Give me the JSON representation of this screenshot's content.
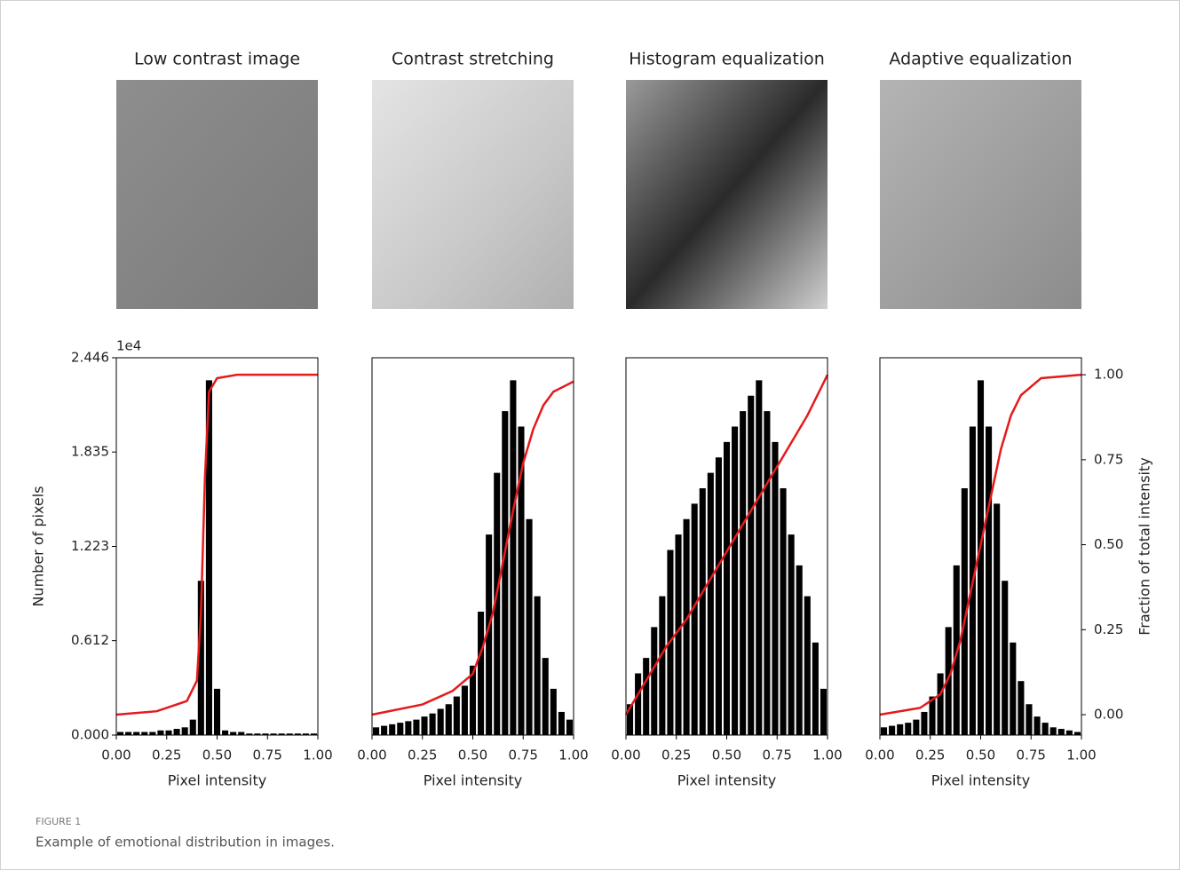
{
  "chart_data": [
    {
      "type": "histogram",
      "title": "Low contrast image",
      "xlabel": "Pixel intensity",
      "ylabel": "Number of pixels",
      "y_offset_label": "1e4",
      "bins": [
        0,
        0.04,
        0.08,
        0.12,
        0.16,
        0.2,
        0.24,
        0.28,
        0.32,
        0.36,
        0.4,
        0.44,
        0.48,
        0.52,
        0.56,
        0.6,
        0.64,
        0.68,
        0.72,
        0.76,
        0.8,
        0.84,
        0.88,
        0.92,
        0.96,
        1.0
      ],
      "values": [
        0.02,
        0.02,
        0.02,
        0.02,
        0.02,
        0.03,
        0.03,
        0.04,
        0.05,
        0.1,
        1.0,
        2.3,
        0.3,
        0.03,
        0.02,
        0.02,
        0.01,
        0.01,
        0.01,
        0.01,
        0.01,
        0.01,
        0.01,
        0.01,
        0.01
      ],
      "color": "#000000",
      "cdf": {
        "x": [
          0,
          0.2,
          0.35,
          0.4,
          0.42,
          0.44,
          0.46,
          0.5,
          0.6,
          1.0
        ],
        "values": [
          0,
          0.01,
          0.04,
          0.1,
          0.3,
          0.7,
          0.95,
          0.99,
          1.0,
          1.0
        ],
        "color": "#e41a1c"
      },
      "xlim": [
        0,
        1
      ],
      "xticks": [
        {
          "value": 0,
          "label": "0.00"
        },
        0.25,
        {
          "value": 0.5,
          "label": "0.50"
        },
        0.75,
        {
          "value": 1,
          "label": "1.00"
        }
      ],
      "ylim": [
        0,
        2.446
      ],
      "yticks": [
        {
          "value": 0,
          "label": "0.000"
        },
        0.612,
        1.223,
        1.835,
        2.446
      ],
      "y2lim": [
        -0.06,
        1.05
      ]
    },
    {
      "type": "histogram",
      "title": "Contrast stretching",
      "xlabel": "Pixel intensity",
      "bins": [
        0,
        0.04,
        0.08,
        0.12,
        0.16,
        0.2,
        0.24,
        0.28,
        0.32,
        0.36,
        0.4,
        0.44,
        0.48,
        0.52,
        0.56,
        0.6,
        0.64,
        0.68,
        0.72,
        0.76,
        0.8,
        0.84,
        0.88,
        0.92,
        0.96,
        1.0
      ],
      "values": [
        0.05,
        0.06,
        0.07,
        0.08,
        0.09,
        0.1,
        0.12,
        0.14,
        0.17,
        0.2,
        0.25,
        0.32,
        0.45,
        0.8,
        1.3,
        1.7,
        2.1,
        2.3,
        2.0,
        1.4,
        0.9,
        0.5,
        0.3,
        0.15,
        0.1
      ],
      "color": "#000000",
      "cdf": {
        "x": [
          0,
          0.25,
          0.4,
          0.5,
          0.55,
          0.6,
          0.65,
          0.7,
          0.75,
          0.8,
          0.85,
          0.9,
          1.0
        ],
        "values": [
          0,
          0.03,
          0.07,
          0.12,
          0.2,
          0.3,
          0.45,
          0.6,
          0.74,
          0.84,
          0.91,
          0.95,
          0.98
        ],
        "color": "#e41a1c"
      },
      "xlim": [
        0,
        1
      ],
      "xticks": [
        {
          "value": 0,
          "label": "0.00"
        },
        0.25,
        {
          "value": 0.5,
          "label": "0.50"
        },
        0.75,
        {
          "value": 1,
          "label": "1.00"
        }
      ],
      "ylim": [
        0,
        2.446
      ],
      "y2lim": [
        -0.06,
        1.05
      ]
    },
    {
      "type": "histogram",
      "title": "Histogram equalization",
      "xlabel": "Pixel intensity",
      "bins": [
        0,
        0.04,
        0.08,
        0.12,
        0.16,
        0.2,
        0.24,
        0.28,
        0.32,
        0.36,
        0.4,
        0.44,
        0.48,
        0.52,
        0.56,
        0.6,
        0.64,
        0.68,
        0.72,
        0.76,
        0.8,
        0.84,
        0.88,
        0.92,
        0.96,
        1.0
      ],
      "values": [
        0.2,
        0.4,
        0.5,
        0.7,
        0.9,
        1.2,
        1.3,
        1.4,
        1.5,
        1.6,
        1.7,
        1.8,
        1.9,
        2.0,
        2.1,
        2.2,
        2.3,
        2.1,
        1.9,
        1.6,
        1.3,
        1.1,
        0.9,
        0.6,
        0.3
      ],
      "color": "#000000",
      "cdf": {
        "x": [
          0,
          0.1,
          0.2,
          0.3,
          0.4,
          0.5,
          0.6,
          0.7,
          0.8,
          0.9,
          1.0
        ],
        "values": [
          0,
          0.1,
          0.2,
          0.28,
          0.38,
          0.48,
          0.58,
          0.68,
          0.78,
          0.88,
          1.0
        ],
        "color": "#e41a1c"
      },
      "xlim": [
        0,
        1
      ],
      "xticks": [
        {
          "value": 0,
          "label": "0.00"
        },
        0.25,
        {
          "value": 0.5,
          "label": "0.50"
        },
        0.75,
        {
          "value": 1,
          "label": "1.00"
        }
      ],
      "ylim": [
        0,
        2.446
      ],
      "y2lim": [
        -0.06,
        1.05
      ]
    },
    {
      "type": "histogram",
      "title": "Adaptive equalization",
      "xlabel": "Pixel intensity",
      "y2label": "Fraction of total intensity",
      "bins": [
        0,
        0.04,
        0.08,
        0.12,
        0.16,
        0.2,
        0.24,
        0.28,
        0.32,
        0.36,
        0.4,
        0.44,
        0.48,
        0.52,
        0.56,
        0.6,
        0.64,
        0.68,
        0.72,
        0.76,
        0.8,
        0.84,
        0.88,
        0.92,
        0.96,
        1.0
      ],
      "values": [
        0.05,
        0.06,
        0.07,
        0.08,
        0.1,
        0.15,
        0.25,
        0.4,
        0.7,
        1.1,
        1.6,
        2.0,
        2.3,
        2.0,
        1.5,
        1.0,
        0.6,
        0.35,
        0.2,
        0.12,
        0.08,
        0.05,
        0.04,
        0.03,
        0.02
      ],
      "color": "#000000",
      "cdf": {
        "x": [
          0,
          0.2,
          0.3,
          0.35,
          0.4,
          0.45,
          0.5,
          0.55,
          0.6,
          0.65,
          0.7,
          0.8,
          1.0
        ],
        "values": [
          0,
          0.02,
          0.06,
          0.12,
          0.22,
          0.36,
          0.5,
          0.64,
          0.78,
          0.88,
          0.94,
          0.99,
          1.0
        ],
        "color": "#e41a1c"
      },
      "xlim": [
        0,
        1
      ],
      "xticks": [
        {
          "value": 0,
          "label": "0.00"
        },
        0.25,
        {
          "value": 0.5,
          "label": "0.50"
        },
        0.75,
        {
          "value": 1,
          "label": "1.00"
        }
      ],
      "ylim": [
        0,
        2.446
      ],
      "y2lim": [
        -0.06,
        1.05
      ],
      "y2ticks": [
        {
          "value": 0,
          "label": "0.00"
        },
        0.25,
        {
          "value": 0.5,
          "label": "0.50"
        },
        0.75,
        {
          "value": 1,
          "label": "1.00"
        }
      ]
    }
  ],
  "figure": {
    "label": "FIGURE 1",
    "caption": "Example of emotional distribution in images."
  }
}
